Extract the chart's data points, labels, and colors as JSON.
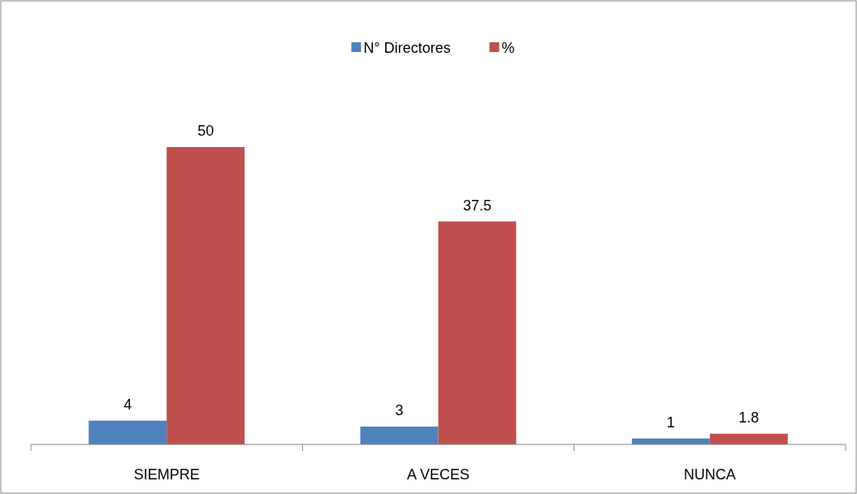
{
  "chart_data": {
    "type": "bar",
    "categories": [
      "SIEMPRE",
      "A VECES",
      "NUNCA"
    ],
    "series": [
      {
        "name": "N° Directores",
        "color": "#4f81bd",
        "values": [
          4,
          3,
          1
        ]
      },
      {
        "name": "%",
        "color": "#c0504d",
        "values": [
          50,
          37.5,
          1.8
        ]
      }
    ],
    "data_labels": true,
    "legend": "top"
  }
}
